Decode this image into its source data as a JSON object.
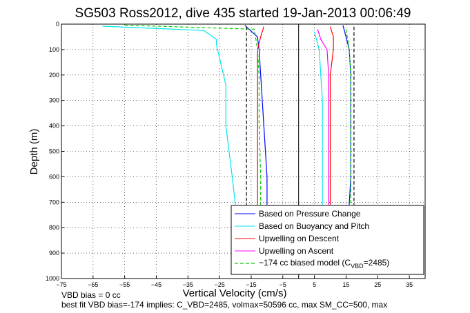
{
  "chart_data": {
    "type": "line",
    "title": "SG503 Ross2012, dive 435 started 19-Jan-2013 00:06:49",
    "xlabel": "Vertical Velocity (cm/s)",
    "ylabel": "Depth (m)",
    "xlim": [
      -75,
      40
    ],
    "ylim": [
      0,
      1000
    ],
    "y_reversed": true,
    "grid": true,
    "xticks": [
      -75,
      -65,
      -55,
      -45,
      -35,
      -25,
      -15,
      -5,
      5,
      15,
      25,
      35
    ],
    "xtick_labels": [
      "−75",
      "−65",
      "−55",
      "−45",
      "−35",
      "−25",
      "−15",
      "−5",
      "5",
      "15",
      "25",
      "35"
    ],
    "yticks": [
      0,
      100,
      200,
      300,
      400,
      500,
      600,
      700,
      800,
      900,
      1000
    ],
    "ytick_labels": [
      "0",
      "100",
      "200",
      "300",
      "400",
      "500",
      "600",
      "700",
      "800",
      "900",
      "1000"
    ],
    "zero_line_x": 0,
    "legend_position": "lower-right",
    "legend": [
      {
        "label": "Based on Pressure Change",
        "color": "#0000ff",
        "style": "solid"
      },
      {
        "label": "Based on Buoyancy and Pitch",
        "color": "#00e5ee",
        "style": "solid"
      },
      {
        "label": "Upwelling on Descent",
        "color": "#ff0000",
        "style": "solid"
      },
      {
        "label": "Upwelling on Ascent",
        "color": "#ff00ff",
        "style": "solid"
      },
      {
        "label_prefix": "−174 cc biased model (C",
        "label_sub": "VBD",
        "label_suffix": "=2485)",
        "color": "#00cc00",
        "style": "dashed"
      }
    ],
    "series": [
      {
        "key": "pressure_desc",
        "color": "#0000ff",
        "style": "solid",
        "x": [
          -17,
          -13,
          -12.5,
          -12,
          -11.5,
          -11,
          -10.5,
          -10,
          -10
        ],
        "y": [
          5,
          50,
          100,
          200,
          300,
          400,
          500,
          600,
          710
        ]
      },
      {
        "key": "pressure_asc",
        "color": "#0000ff",
        "style": "solid",
        "x": [
          14,
          15,
          16,
          16.5,
          16.5,
          16.5,
          16.5,
          16.5,
          16
        ],
        "y": [
          5,
          50,
          100,
          200,
          300,
          400,
          500,
          600,
          710
        ]
      },
      {
        "key": "buoyancy_desc",
        "color": "#00e5ee",
        "style": "solid",
        "x": [
          -62,
          -30,
          -26,
          -26,
          -23,
          -23,
          -22,
          -21,
          -20
        ],
        "y": [
          8,
          25,
          60,
          80,
          240,
          400,
          500,
          600,
          710
        ]
      },
      {
        "key": "buoyancy_asc",
        "color": "#00e5ee",
        "style": "solid",
        "x": [
          5,
          6.5,
          7,
          7.5,
          7.5,
          7.5,
          7.5
        ],
        "y": [
          30,
          100,
          200,
          300,
          400,
          600,
          710
        ]
      },
      {
        "key": "upwelling_desc",
        "color": "#ff0000",
        "style": "solid",
        "x": [
          -11,
          -12,
          -13,
          -13,
          -13,
          -13,
          -13,
          -13
        ],
        "y": [
          10,
          50,
          100,
          200,
          300,
          400,
          600,
          710
        ]
      },
      {
        "key": "upwelling_asc_red",
        "color": "#ff0000",
        "style": "solid",
        "x": [
          10,
          11,
          11,
          10,
          10,
          10,
          10,
          10
        ],
        "y": [
          10,
          50,
          100,
          200,
          300,
          400,
          600,
          710
        ]
      },
      {
        "key": "upwelling_asc",
        "color": "#ff00ff",
        "style": "solid",
        "x": [
          6,
          7,
          9,
          9.5,
          9.5,
          9.5,
          9.5,
          9.5
        ],
        "y": [
          20,
          60,
          100,
          200,
          300,
          400,
          600,
          710
        ]
      },
      {
        "key": "model_desc",
        "color": "#00cc00",
        "style": "dashed",
        "x": [
          -55,
          -14,
          -13,
          -12.5,
          -12.5,
          -12.5,
          -12,
          -12
        ],
        "y": [
          4,
          20,
          100,
          200,
          300,
          400,
          600,
          710
        ]
      },
      {
        "key": "model_asc",
        "color": "#00cc00",
        "style": "dashed",
        "x": [
          15,
          16,
          16.5,
          16.5,
          16.5,
          16.5
        ],
        "y": [
          20,
          100,
          200,
          400,
          600,
          710
        ]
      },
      {
        "key": "bias_desc",
        "color": "#000000",
        "style": "dashed",
        "x": [
          -16.5,
          -16.5
        ],
        "y": [
          10,
          710
        ]
      },
      {
        "key": "bias_asc",
        "color": "#000000",
        "style": "dashed",
        "x": [
          17.5,
          17.5
        ],
        "y": [
          10,
          710
        ]
      }
    ],
    "footer": [
      "VBD bias = 0 cc",
      "best fit VBD bias=-174 implies: C_VBD=2485, volmax=50596 cc, max SM_CC=500, max"
    ]
  }
}
